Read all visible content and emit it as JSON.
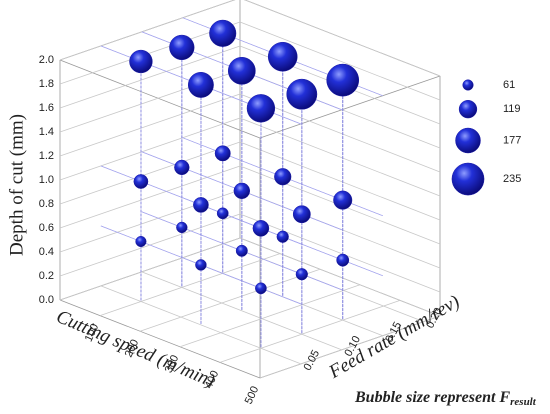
{
  "chart_data": {
    "type": "bubble3d",
    "x_label": "Cutting speed (m/min)",
    "y_label": "Feed rate (mm/rev)",
    "z_label": "Depth of cut (mm)",
    "caption": "Bubble size represent F",
    "caption_subscript": "result",
    "color": "#1a1aa8",
    "grid": true,
    "xlim": [
      0,
      500
    ],
    "xticks": [
      100,
      200,
      300,
      400,
      500
    ],
    "ylim": [
      0,
      0.22
    ],
    "yticks": [
      0.05,
      {
        "value": 0.1,
        "label": "0.10"
      },
      0.15,
      {
        "value": 0.2,
        "label": "0.20"
      }
    ],
    "zlim": [
      0,
      2
    ],
    "zticks": [
      {
        "value": 0,
        "label": "0.0"
      },
      0.2,
      0.4,
      0.6,
      0.8,
      {
        "value": 1,
        "label": "1.0"
      },
      1.2,
      1.4,
      1.6,
      1.8,
      {
        "value": 2,
        "label": "2.0"
      }
    ],
    "x": [
      100,
      100,
      100,
      250,
      250,
      250,
      400,
      400,
      400,
      100,
      100,
      100,
      250,
      250,
      250,
      400,
      400,
      400,
      100,
      100,
      100,
      250,
      250,
      250,
      400,
      400,
      400
    ],
    "y": [
      0.05,
      0.1,
      0.15,
      0.05,
      0.1,
      0.15,
      0.05,
      0.1,
      0.15,
      0.05,
      0.1,
      0.15,
      0.05,
      0.1,
      0.15,
      0.05,
      0.1,
      0.15,
      0.05,
      0.1,
      0.15,
      0.05,
      0.1,
      0.15,
      0.05,
      0.1,
      0.15
    ],
    "z": [
      0.5,
      0.5,
      0.5,
      0.5,
      0.5,
      0.5,
      0.5,
      0.5,
      0.5,
      1,
      1,
      1,
      1,
      1,
      1,
      1,
      1,
      1,
      2,
      2,
      2,
      2,
      2,
      2,
      2,
      2,
      2
    ],
    "sizes": [
      61,
      63,
      66,
      64,
      68,
      70,
      66,
      70,
      75,
      90,
      95,
      100,
      98,
      104,
      110,
      105,
      115,
      125,
      160,
      175,
      190,
      180,
      195,
      210,
      200,
      220,
      235
    ],
    "legend_sizes": [
      61,
      119,
      177,
      235
    ]
  }
}
